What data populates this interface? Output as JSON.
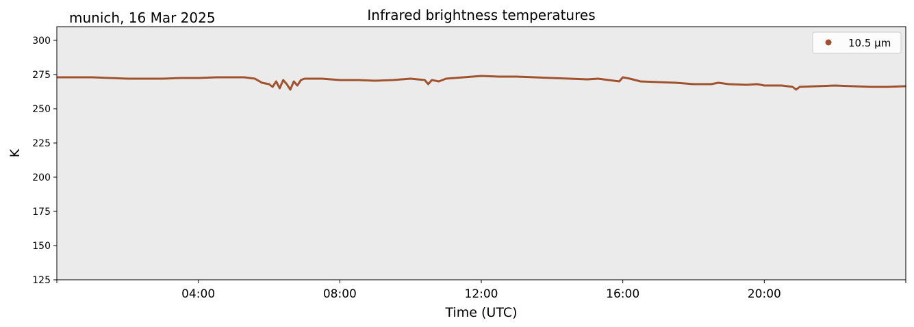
{
  "chart_data": {
    "type": "line",
    "title": "Infrared brightness temperatures",
    "subtitle": "munich, 16 Mar 2025",
    "xlabel": "Time (UTC)",
    "ylabel": "K",
    "xlim": [
      0,
      24
    ],
    "ylim": [
      125,
      310
    ],
    "x_ticks": [
      {
        "value": 4,
        "label": "04:00"
      },
      {
        "value": 8,
        "label": "08:00"
      },
      {
        "value": 12,
        "label": "12:00"
      },
      {
        "value": 16,
        "label": "16:00"
      },
      {
        "value": 20,
        "label": "20:00"
      }
    ],
    "y_ticks": [
      {
        "value": 125,
        "label": "125"
      },
      {
        "value": 150,
        "label": "150"
      },
      {
        "value": 175,
        "label": "175"
      },
      {
        "value": 200,
        "label": "200"
      },
      {
        "value": 225,
        "label": "225"
      },
      {
        "value": 250,
        "label": "250"
      },
      {
        "value": 275,
        "label": "275"
      },
      {
        "value": 300,
        "label": "300"
      }
    ],
    "grid": false,
    "background_color": "#ebebeb",
    "legend_position": "top-right",
    "series": [
      {
        "name": "10.5 µm",
        "color": "#a0522d",
        "x": [
          0,
          0.5,
          1,
          1.5,
          2,
          2.5,
          3,
          3.5,
          4,
          4.5,
          5,
          5.3,
          5.6,
          5.8,
          6.0,
          6.1,
          6.2,
          6.3,
          6.4,
          6.5,
          6.6,
          6.7,
          6.8,
          6.9,
          7.0,
          7.5,
          8,
          8.5,
          9,
          9.5,
          10,
          10.4,
          10.5,
          10.6,
          10.8,
          11,
          11.5,
          12,
          12.5,
          13,
          13.5,
          14,
          14.5,
          15,
          15.3,
          15.6,
          15.9,
          16.0,
          16.2,
          16.5,
          17,
          17.5,
          18,
          18.5,
          18.7,
          19,
          19.5,
          19.8,
          20,
          20.5,
          20.8,
          20.9,
          21.0,
          21.5,
          22,
          22.5,
          23,
          23.5,
          24
        ],
        "y": [
          273,
          273,
          273,
          272.5,
          272,
          272,
          272,
          272.5,
          272.5,
          273,
          273,
          273,
          272,
          269,
          268,
          266,
          270,
          265,
          271,
          268,
          264,
          270,
          267,
          271,
          272,
          272,
          271,
          271,
          270.5,
          271,
          272,
          271,
          268,
          271,
          270,
          272,
          273,
          274,
          273.5,
          273.5,
          273,
          272.5,
          272,
          271.5,
          272,
          271,
          270,
          273,
          272,
          270,
          269.5,
          269,
          268,
          268,
          269,
          268,
          267.5,
          268,
          267,
          267,
          266,
          264,
          266,
          266.5,
          267,
          266.5,
          266,
          266,
          266.5
        ]
      }
    ]
  }
}
